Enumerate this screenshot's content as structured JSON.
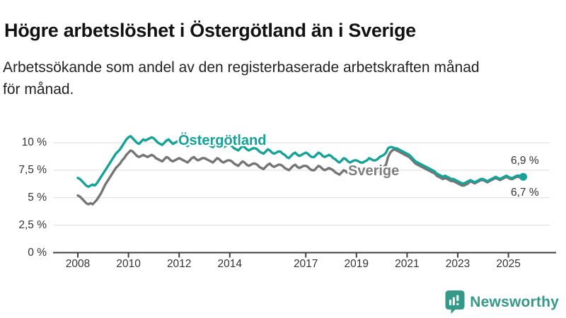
{
  "header": {
    "title": "Högre arbetslöshet i Östergötland än i Sverige",
    "subtitle_lines": [
      "Arbetssökande som andel av den registerbaserade arbetskraften månad",
      "för månad."
    ]
  },
  "chart_data": {
    "type": "line",
    "title": "Högre arbetslöshet i Östergötland än i Sverige",
    "subtitle": "Arbetssökande som andel av den registerbaserade arbetskraften månad för månad.",
    "x_start_year": 2008,
    "x_interval": "monthly",
    "x_end": "2025-08",
    "xlim": [
      2007,
      2026.6
    ],
    "ylim": [
      0,
      11.3
    ],
    "grid": "horizontal",
    "x_tick_years": [
      2008,
      2010,
      2012,
      2014,
      2017,
      2019,
      2021,
      2023,
      2025
    ],
    "x_tick_labels": [
      "2008",
      "2010",
      "2012",
      "2014",
      "2017",
      "2019",
      "2021",
      "2023",
      "2025"
    ],
    "y_ticks": [
      0,
      2.5,
      5,
      7.5,
      10
    ],
    "y_tick_labels": [
      "0 %",
      "2,5 %",
      "5 %",
      "7,5 %",
      "10 %"
    ],
    "colors": {
      "ostergotland": "#16a296",
      "sverige": "#757575",
      "grid": "#dcdcdc",
      "axis": "#3f3f3f",
      "text": "#333333",
      "brand": "#35998a"
    },
    "series": [
      {
        "name": "Sverige",
        "color": "#757575",
        "values": [
          5.2,
          5.1,
          4.9,
          4.7,
          4.5,
          4.4,
          4.5,
          4.4,
          4.6,
          4.8,
          5.1,
          5.4,
          5.8,
          6.2,
          6.5,
          6.8,
          7.1,
          7.4,
          7.7,
          7.9,
          8.1,
          8.4,
          8.6,
          8.9,
          9.1,
          9.3,
          9.2,
          9.0,
          8.8,
          8.7,
          8.8,
          8.9,
          8.8,
          8.7,
          8.8,
          8.9,
          8.8,
          8.6,
          8.5,
          8.4,
          8.3,
          8.5,
          8.7,
          8.6,
          8.4,
          8.3,
          8.4,
          8.5,
          8.6,
          8.5,
          8.4,
          8.3,
          8.2,
          8.4,
          8.6,
          8.7,
          8.5,
          8.4,
          8.5,
          8.6,
          8.6,
          8.5,
          8.4,
          8.3,
          8.2,
          8.4,
          8.6,
          8.5,
          8.3,
          8.2,
          8.3,
          8.4,
          8.4,
          8.3,
          8.1,
          8.0,
          7.9,
          8.1,
          8.3,
          8.2,
          8.0,
          7.9,
          8.0,
          8.1,
          8.1,
          8.0,
          7.8,
          7.7,
          7.6,
          7.8,
          8.0,
          8.1,
          7.9,
          7.8,
          7.9,
          8.0,
          8.0,
          7.9,
          7.7,
          7.6,
          7.5,
          7.7,
          7.9,
          8.0,
          7.8,
          7.7,
          7.8,
          7.9,
          7.9,
          7.8,
          7.6,
          7.5,
          7.5,
          7.7,
          7.9,
          7.8,
          7.6,
          7.5,
          7.6,
          7.7,
          7.6,
          7.5,
          7.3,
          7.2,
          7.1,
          7.3,
          7.5,
          7.4,
          7.2,
          7.1,
          7.2,
          7.3,
          7.3,
          7.2,
          7.1,
          7.1,
          7.2,
          7.3,
          7.5,
          7.4,
          7.3,
          7.3,
          7.4,
          7.6,
          7.7,
          7.8,
          8.0,
          8.7,
          9.1,
          9.3,
          9.4,
          9.3,
          9.2,
          9.1,
          9.0,
          8.9,
          8.8,
          8.7,
          8.5,
          8.3,
          8.1,
          8.0,
          7.9,
          7.8,
          7.7,
          7.6,
          7.5,
          7.4,
          7.3,
          7.2,
          7.0,
          6.9,
          6.8,
          6.7,
          6.8,
          6.7,
          6.6,
          6.5,
          6.5,
          6.4,
          6.3,
          6.2,
          6.1,
          6.1,
          6.2,
          6.3,
          6.5,
          6.4,
          6.3,
          6.4,
          6.5,
          6.6,
          6.6,
          6.5,
          6.4,
          6.5,
          6.6,
          6.7,
          6.8,
          6.7,
          6.6,
          6.7,
          6.8,
          6.9,
          6.8,
          6.7,
          6.7,
          6.8,
          6.9,
          6.9,
          6.8,
          6.7
        ]
      },
      {
        "name": "Östergötland",
        "color": "#16a296",
        "values": [
          6.8,
          6.7,
          6.5,
          6.3,
          6.1,
          6.0,
          6.1,
          6.2,
          6.1,
          6.3,
          6.6,
          6.9,
          7.2,
          7.5,
          7.8,
          8.1,
          8.4,
          8.7,
          9.0,
          9.2,
          9.4,
          9.7,
          10.0,
          10.3,
          10.5,
          10.6,
          10.4,
          10.2,
          10.0,
          9.9,
          10.1,
          10.3,
          10.2,
          10.3,
          10.4,
          10.5,
          10.4,
          10.2,
          10.0,
          9.9,
          9.8,
          10.0,
          10.2,
          10.3,
          10.1,
          9.9,
          10.0,
          10.1,
          10.2,
          10.1,
          9.9,
          9.8,
          9.7,
          9.9,
          10.1,
          10.2,
          10.0,
          9.9,
          10.0,
          10.1,
          10.1,
          10.0,
          9.8,
          9.7,
          9.6,
          9.8,
          10.0,
          9.9,
          9.7,
          9.6,
          9.7,
          9.8,
          9.8,
          9.7,
          9.5,
          9.4,
          9.3,
          9.5,
          9.7,
          9.6,
          9.4,
          9.3,
          9.4,
          9.5,
          9.5,
          9.4,
          9.2,
          9.1,
          9.0,
          9.2,
          9.4,
          9.3,
          9.1,
          9.0,
          9.1,
          9.2,
          9.2,
          9.0,
          8.9,
          8.7,
          8.6,
          8.8,
          9.0,
          9.1,
          8.9,
          8.8,
          8.9,
          9.0,
          9.1,
          9.0,
          8.8,
          8.7,
          8.7,
          8.9,
          9.1,
          9.0,
          8.8,
          8.7,
          8.8,
          8.9,
          8.8,
          8.6,
          8.5,
          8.3,
          8.2,
          8.4,
          8.6,
          8.5,
          8.3,
          8.2,
          8.3,
          8.4,
          8.4,
          8.3,
          8.2,
          8.2,
          8.3,
          8.4,
          8.6,
          8.5,
          8.4,
          8.4,
          8.5,
          8.7,
          8.8,
          8.9,
          9.1,
          9.5,
          9.6,
          9.6,
          9.5,
          9.5,
          9.4,
          9.3,
          9.2,
          9.1,
          9.0,
          8.9,
          8.7,
          8.5,
          8.3,
          8.2,
          8.1,
          8.0,
          7.9,
          7.8,
          7.7,
          7.6,
          7.5,
          7.4,
          7.2,
          7.1,
          7.0,
          6.9,
          7.0,
          6.9,
          6.8,
          6.7,
          6.7,
          6.6,
          6.5,
          6.4,
          6.3,
          6.3,
          6.4,
          6.5,
          6.6,
          6.5,
          6.4,
          6.5,
          6.6,
          6.7,
          6.7,
          6.6,
          6.5,
          6.6,
          6.7,
          6.8,
          6.9,
          6.8,
          6.7,
          6.8,
          6.9,
          7.0,
          6.9,
          6.8,
          6.8,
          6.9,
          7.0,
          7.0,
          6.9,
          6.9
        ]
      }
    ],
    "end_labels": [
      {
        "series": "Östergötland",
        "text": "6,9 %"
      },
      {
        "series": "Sverige",
        "text": "6,7 %"
      }
    ],
    "legend_position": "inline-labels"
  },
  "footer": {
    "brand": "Newsworthy",
    "logo_icon": "newsworthy-speech-bubble-chart-icon"
  }
}
